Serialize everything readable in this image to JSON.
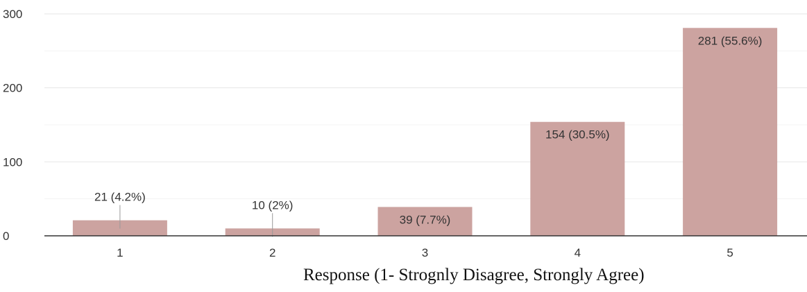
{
  "chart_data": {
    "type": "bar",
    "categories": [
      "1",
      "2",
      "3",
      "4",
      "5"
    ],
    "values": [
      21,
      10,
      39,
      154,
      281
    ],
    "data_labels": [
      "21 (4.2%)",
      "10 (2%)",
      "39 (7.7%)",
      "154 (30.5%)",
      "281 (55.6%)"
    ],
    "title": "",
    "xlabel": "Response (1- Strognly Disagree, Strongly Agree)",
    "ylabel": "",
    "ylim": [
      0,
      300
    ],
    "yticks": [
      "0",
      "100",
      "200",
      "300"
    ],
    "grid": true,
    "bar_color": "#cca3a0",
    "gridline_color": "#e6e6e6",
    "axis_color": "#333333"
  }
}
